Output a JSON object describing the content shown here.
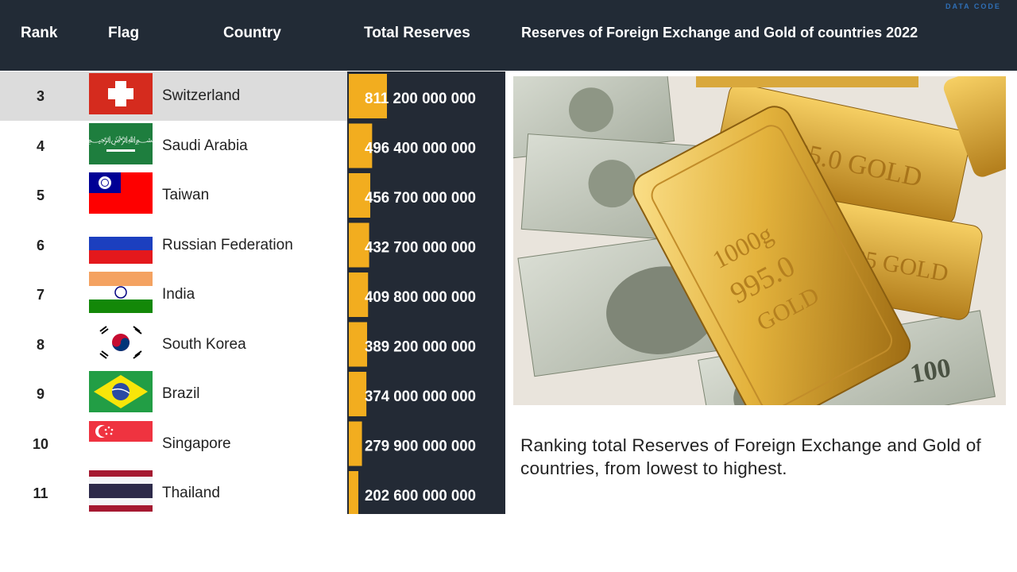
{
  "header": {
    "rank_label": "Rank",
    "flag_label": "Flag",
    "country_label": "Country",
    "total_label": "Total Reserves",
    "title": "Reserves of Foreign Exchange and Gold of countries 2022",
    "watermark": "DATA CODE"
  },
  "rows": [
    {
      "rank": "3",
      "country": "Switzerland",
      "reserves": "811 200 000 000",
      "highlighted": true
    },
    {
      "rank": "4",
      "country": "Saudi Arabia",
      "reserves": "496 400 000 000"
    },
    {
      "rank": "5",
      "country": "Taiwan",
      "reserves": "456 700 000 000"
    },
    {
      "rank": "6",
      "country": "Russian Federation",
      "reserves": "432 700 000 000"
    },
    {
      "rank": "7",
      "country": "India",
      "reserves": "409 800 000 000"
    },
    {
      "rank": "8",
      "country": "South Korea",
      "reserves": "389 200 000 000"
    },
    {
      "rank": "9",
      "country": "Brazil",
      "reserves": "374 000 000 000"
    },
    {
      "rank": "10",
      "country": "Singapore",
      "reserves": "279 900 000 000"
    },
    {
      "rank": "11",
      "country": "Thailand",
      "reserves": "202 600 000 000"
    }
  ],
  "chart_data": {
    "type": "bar",
    "orientation": "horizontal",
    "categories": [
      "Switzerland",
      "Saudi Arabia",
      "Taiwan",
      "Russian Federation",
      "India",
      "South Korea",
      "Brazil",
      "Singapore",
      "Thailand"
    ],
    "values": [
      811200000000,
      496400000000,
      456700000000,
      432700000000,
      409800000000,
      389200000000,
      374000000000,
      279900000000,
      202600000000
    ],
    "bar_color": "#f2ad1f",
    "background": "#232a35"
  },
  "caption": "Ranking total Reserves of Foreign Exchange and Gold of countries, from lowest to highest.",
  "icons": {
    "photo": "gold-bars-and-dollar-bills-image"
  }
}
